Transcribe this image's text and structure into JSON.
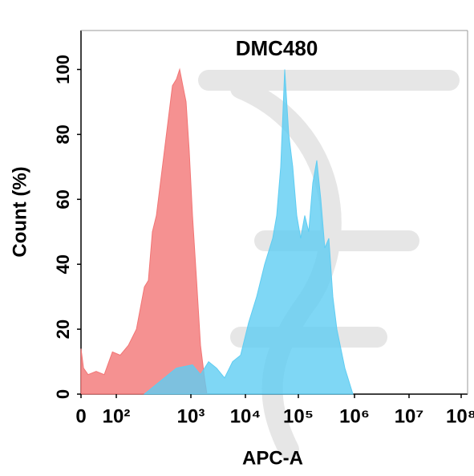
{
  "chart_data": {
    "type": "histogram-overlay",
    "title": "DMC480",
    "x_label": "APC-A",
    "y_label": "Count  (%)",
    "xscale": "biexponential",
    "xticks": [
      0,
      {
        "value": 100,
        "label": "10²"
      },
      {
        "value": 1000,
        "label": "10³"
      },
      {
        "value": 10000,
        "label": "10⁴"
      },
      {
        "value": 100000,
        "label": "10⁵"
      },
      {
        "value": 1000000,
        "label": "10⁶"
      },
      {
        "value": 10000000,
        "label": "10⁷"
      },
      {
        "value": 100000000,
        "label": "10⁸"
      }
    ],
    "ylim": [
      0,
      112
    ],
    "yticks": [
      0,
      20,
      40,
      60,
      80,
      100
    ],
    "series": [
      {
        "color": "#f27575",
        "x": [
          0,
          7,
          20,
          43,
          66,
          89,
          113,
          145,
          186,
          238,
          269,
          305,
          345,
          390,
          442,
          500,
          566,
          640,
          707,
          780,
          861,
          950,
          1070,
          1270,
          1500,
          1780,
          1970
        ],
        "values": [
          14,
          8,
          6,
          7,
          6,
          13,
          12,
          15,
          20,
          33,
          35,
          50,
          55,
          65,
          75,
          85,
          95,
          97,
          100,
          95,
          90,
          75,
          55,
          35,
          15,
          5,
          0
        ]
      },
      {
        "color": "#5fcdf2",
        "x": [
          238,
          390,
          640,
          1070,
          1500,
          2110,
          2960,
          4150,
          5820,
          8160,
          11500,
          16300,
          23100,
          32700,
          39000,
          46400,
          55200,
          65800,
          78300,
          93300,
          110000,
          130000,
          153000,
          181000,
          213000,
          251000,
          296000,
          349000,
          411000,
          485000,
          674000,
          936000
        ],
        "values": [
          0,
          4,
          8,
          9,
          6,
          10,
          8,
          5,
          10,
          12,
          22,
          30,
          40,
          48,
          55,
          70,
          100,
          80,
          70,
          55,
          48,
          55,
          50,
          65,
          72,
          60,
          45,
          48,
          30,
          20,
          8,
          0
        ]
      }
    ]
  }
}
